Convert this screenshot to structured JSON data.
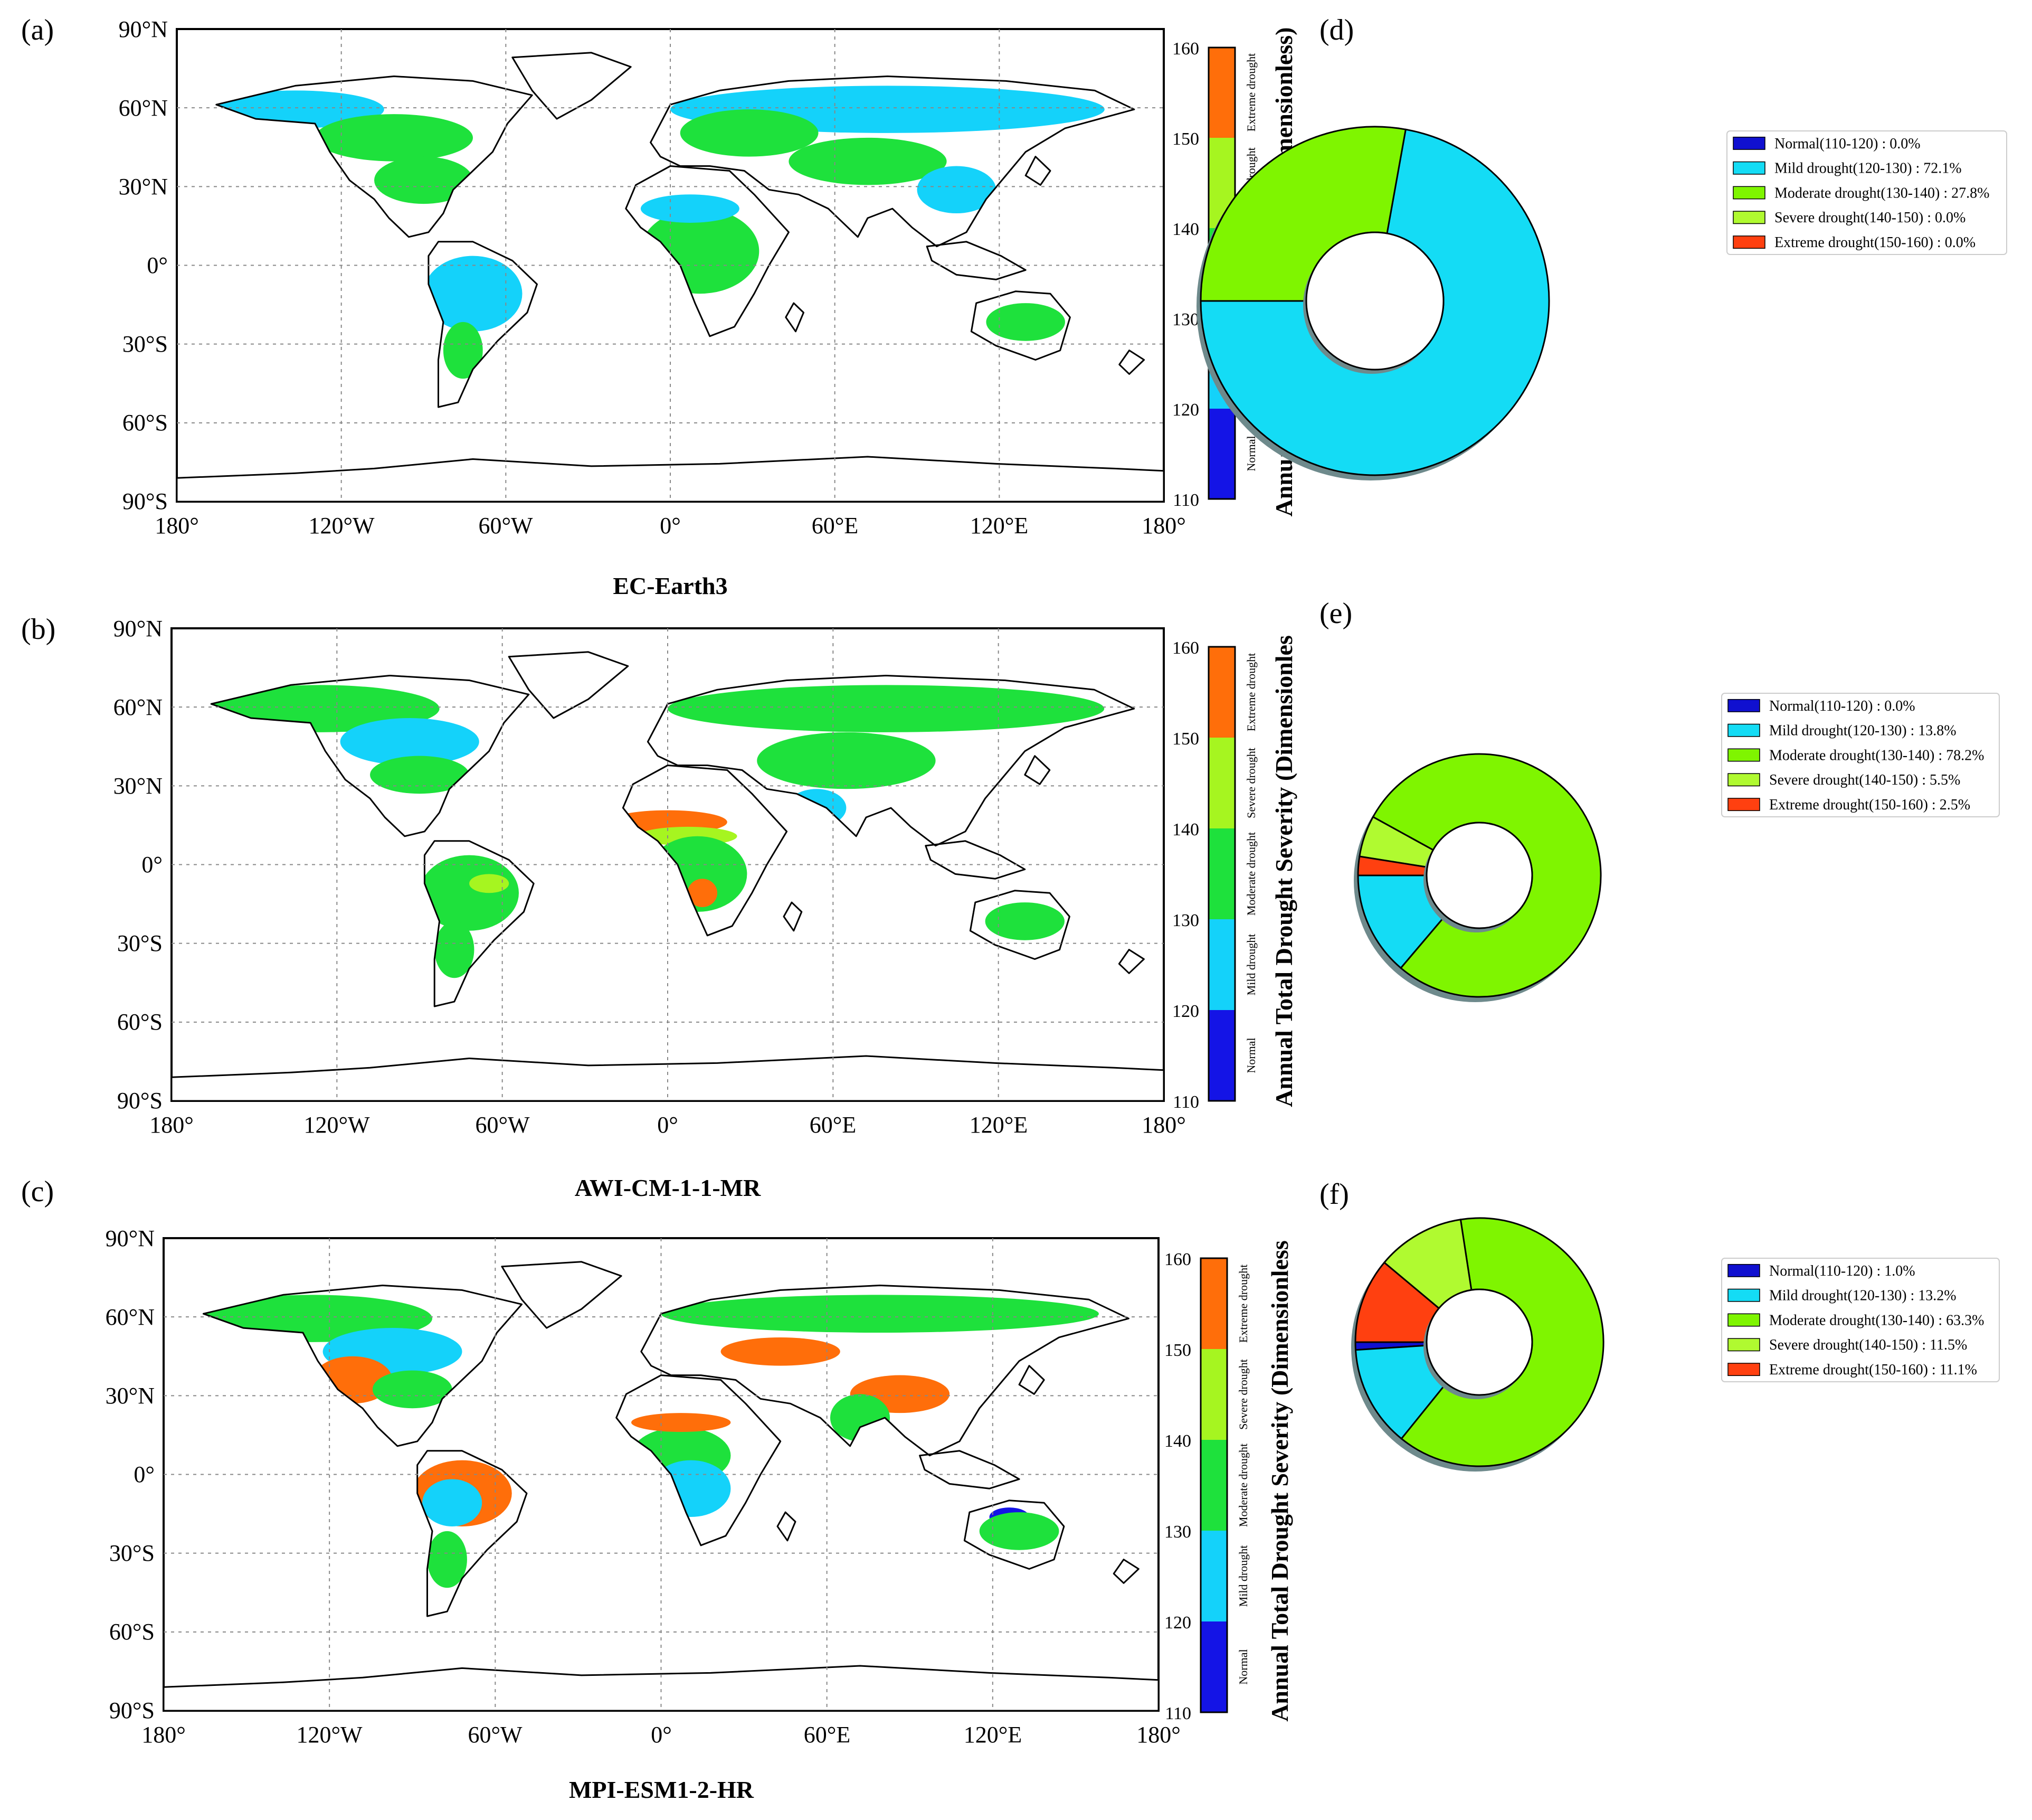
{
  "legend_colors": {
    "normal": "#1414e6",
    "mild": "#14d2fa",
    "moderate": "#1ee13c",
    "severe": "#a6f520",
    "extreme": "#ff6e0a",
    "land_empty": "#ffffff"
  },
  "pie_colors": {
    "normal": "#1010d0",
    "mild": "#14dcf5",
    "moderate": "#7ff500",
    "severe": "#b0fa30",
    "extreme": "#ff4010"
  },
  "panels": [
    {
      "map_letter": "(a)",
      "pie_letter": "(d)",
      "model": "EC-Earth3",
      "colorbar_title": "Annual Total Drought Severity (Dimensionless)"
    },
    {
      "map_letter": "(b)",
      "pie_letter": "(e)",
      "model": "AWI-CM-1-1-MR",
      "colorbar_title": "Annual Total Drought Severity (Dimensionles"
    },
    {
      "map_letter": "(c)",
      "pie_letter": "(f)",
      "model": "MPI-ESM1-2-HR",
      "colorbar_title": "Annual Total Drought Severity (Dimensionless"
    }
  ],
  "lat_ticks": [
    "90°N",
    "60°N",
    "30°N",
    "0°",
    "30°S",
    "60°S",
    "90°S"
  ],
  "lon_ticks": [
    "180°",
    "120°W",
    "60°W",
    "0°",
    "60°E",
    "120°E",
    "180°"
  ],
  "colorbar_ticks": [
    "160",
    "150",
    "140",
    "130",
    "120",
    "110"
  ],
  "colorbar_classes": [
    "Extreme drought",
    "Severe drought",
    "Moderate drought",
    "Mild drought",
    "Normal"
  ],
  "chart_data": [
    {
      "type": "pie",
      "panel": "(d)",
      "categories": [
        "Normal(110-120)",
        "Mild drought(120-130)",
        "Moderate drought(130-140)",
        "Severe drought(140-150)",
        "Extreme drought(150-160)"
      ],
      "values": [
        0.0,
        72.1,
        27.8,
        0.0,
        0.0
      ],
      "legend_labels": [
        "Normal(110-120) : 0.0%",
        "Mild drought(120-130) : 72.1%",
        "Moderate drought(130-140) : 27.8%",
        "Severe drought(140-150) : 0.0%",
        "Extreme drought(150-160) : 0.0%"
      ],
      "legend_position": "top-right"
    },
    {
      "type": "pie",
      "panel": "(e)",
      "categories": [
        "Normal(110-120)",
        "Mild drought(120-130)",
        "Moderate drought(130-140)",
        "Severe drought(140-150)",
        "Extreme drought(150-160)"
      ],
      "values": [
        0.0,
        13.8,
        78.2,
        5.5,
        2.5
      ],
      "legend_labels": [
        "Normal(110-120) : 0.0%",
        "Mild drought(120-130) : 13.8%",
        "Moderate drought(130-140) : 78.2%",
        "Severe drought(140-150) : 5.5%",
        "Extreme drought(150-160) : 2.5%"
      ],
      "legend_position": "top-right"
    },
    {
      "type": "pie",
      "panel": "(f)",
      "categories": [
        "Normal(110-120)",
        "Mild drought(120-130)",
        "Moderate drought(130-140)",
        "Severe drought(140-150)",
        "Extreme drought(150-160)"
      ],
      "values": [
        1.0,
        13.2,
        63.3,
        11.5,
        11.1
      ],
      "legend_labels": [
        "Normal(110-120) : 1.0%",
        "Mild drought(120-130) : 13.2%",
        "Moderate drought(130-140) : 63.3%",
        "Severe drought(140-150) : 11.5%",
        "Extreme drought(150-160) : 11.1%"
      ],
      "legend_position": "top-right"
    },
    {
      "type": "heatmap",
      "panel": "(a)",
      "title": "EC-Earth3",
      "xlim": [
        -180,
        180
      ],
      "ylim": [
        -90,
        90
      ],
      "colorbar_range": [
        110,
        160
      ],
      "grid": true
    },
    {
      "type": "heatmap",
      "panel": "(b)",
      "title": "AWI-CM-1-1-MR",
      "xlim": [
        -180,
        180
      ],
      "ylim": [
        -90,
        90
      ],
      "colorbar_range": [
        110,
        160
      ],
      "grid": true
    },
    {
      "type": "heatmap",
      "panel": "(c)",
      "title": "MPI-ESM1-2-HR",
      "xlim": [
        -180,
        180
      ],
      "ylim": [
        -90,
        90
      ],
      "colorbar_range": [
        110,
        160
      ],
      "grid": true
    }
  ]
}
